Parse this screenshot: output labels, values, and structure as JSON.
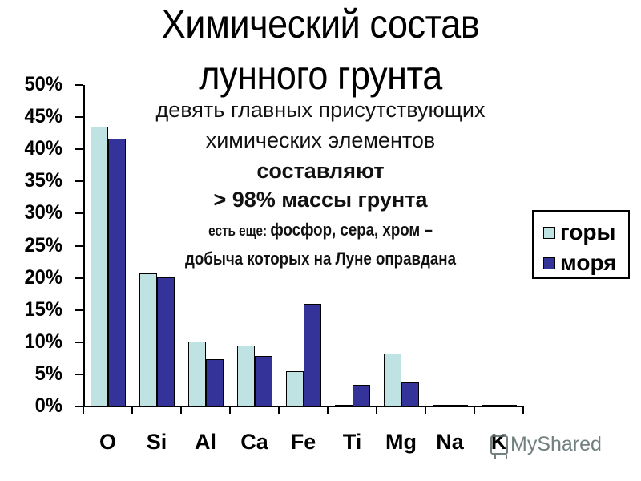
{
  "slide": {
    "title_line1": "Химический состав",
    "title_line2": "лунного грунта",
    "subtitle_line1": "девять главных присутствующих",
    "subtitle_line2": "химических элементов",
    "subtitle_line3": "составляют",
    "subtitle_line4": "> 98% массы грунта",
    "subtitle_line5_prefix": "есть еще: ",
    "subtitle_line5_main": "фосфор, сера, хром –",
    "subtitle_line6": "добыча которых на Луне оправдана",
    "watermark": "MyShared"
  },
  "legend": {
    "items": [
      {
        "label": "горы",
        "color": "#bfe3e3"
      },
      {
        "label": "моря",
        "color": "#333399"
      }
    ]
  },
  "y_ticks": [
    "50%",
    "45%",
    "40%",
    "35%",
    "30%",
    "25%",
    "20%",
    "15%",
    "10%",
    "5%",
    "0%"
  ],
  "x_labels": [
    "O",
    "Si",
    "Al",
    "Ca",
    "Fe",
    "Ti",
    "Mg",
    "Na",
    "K"
  ],
  "chart_data": {
    "type": "bar",
    "title": "Химический состав лунного грунта",
    "subtitle": "девять главных присутствующих химических элементов составляют > 98% массы грунта; есть еще: фосфор, сера, хром – добыча которых на Луне оправдана",
    "categories": [
      "O",
      "Si",
      "Al",
      "Ca",
      "Fe",
      "Ti",
      "Mg",
      "Na",
      "K"
    ],
    "series": [
      {
        "name": "горы",
        "color": "#bfe3e3",
        "values": [
          43.5,
          20.7,
          10.1,
          9.5,
          5.5,
          0.2,
          8.2,
          0.3,
          0.3
        ]
      },
      {
        "name": "моря",
        "color": "#333399",
        "values": [
          41.6,
          20.1,
          7.4,
          7.9,
          15.9,
          3.4,
          3.7,
          0.2,
          0.2
        ]
      }
    ],
    "xlabel": "",
    "ylabel": "",
    "ylim": [
      0,
      50
    ],
    "ytick_step": 5,
    "ytick_format": "percent",
    "grid": false,
    "legend_position": "right"
  }
}
